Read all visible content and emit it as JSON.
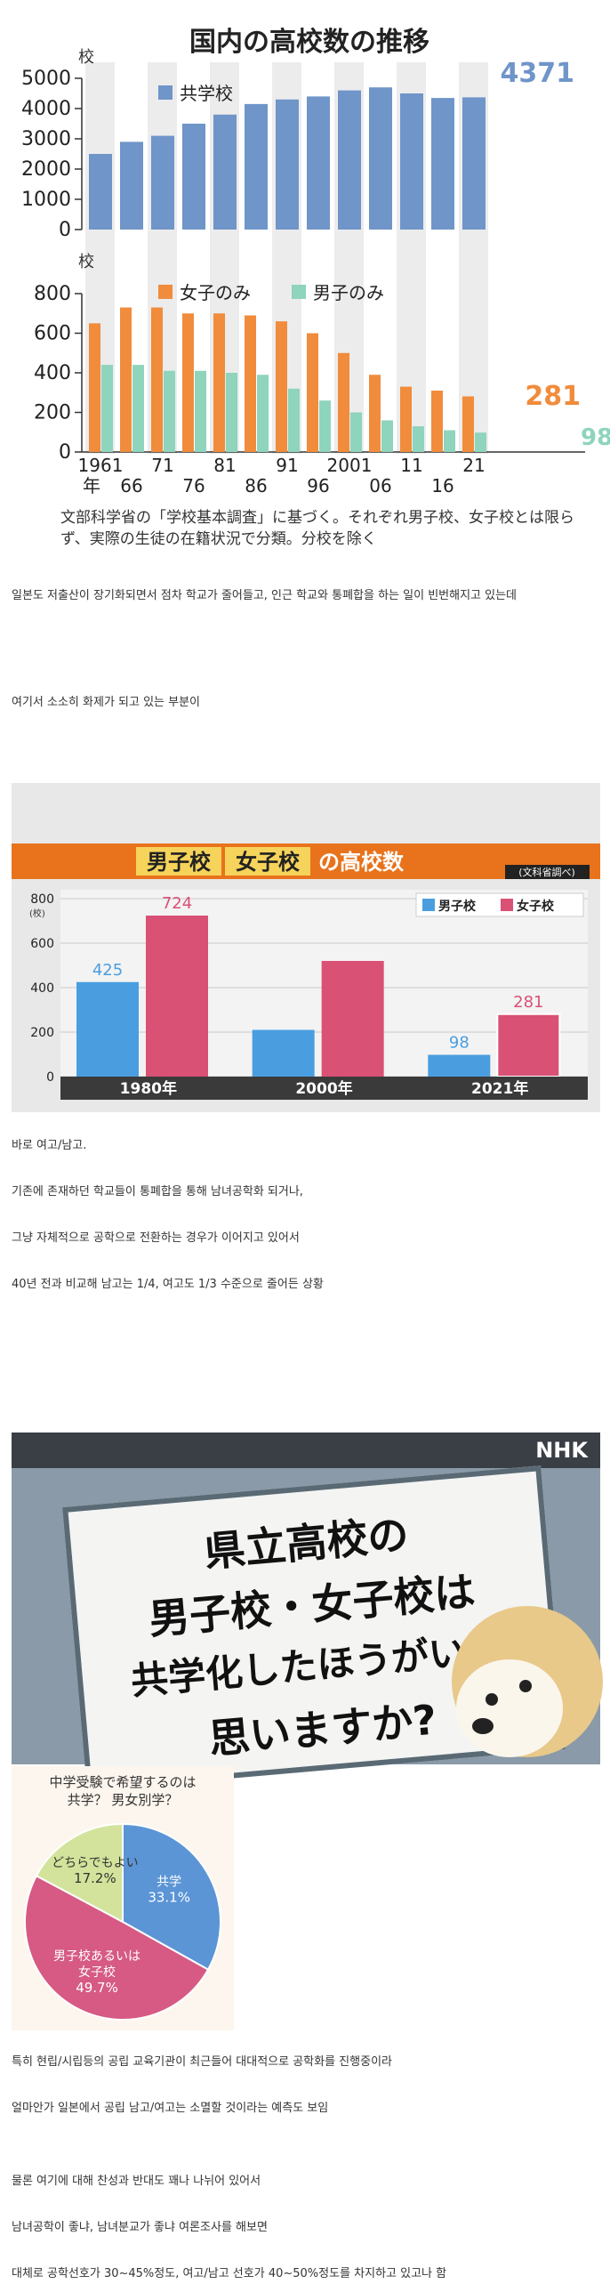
{
  "chart1": {
    "title": "国内の高校数の推移",
    "unit_top": "校",
    "unit_bottom": "校",
    "legend_coed": "共学校",
    "legend_girls": "女子のみ",
    "legend_boys": "男子のみ",
    "last_label_coed": "4371",
    "last_label_girls": "281",
    "last_label_boys": "98",
    "y_ticks_top": [
      "5000",
      "4000",
      "3000",
      "2000",
      "1000",
      "0"
    ],
    "y_ticks_bottom": [
      "800",
      "600",
      "400",
      "200",
      "0"
    ],
    "x_labels_top_row": [
      "1961",
      "71",
      "81",
      "91",
      "2001",
      "11",
      "21"
    ],
    "x_labels_bottom_row": [
      "年",
      "66",
      "76",
      "86",
      "96",
      "06",
      "16"
    ],
    "note": "文部科学省の「学校基本調査」に基づく。それぞれ男子校、女子校とは限らず、実際の生徒の在籍状況で分類。分校を除く",
    "colors": {
      "coed": "#6f95c9",
      "girls": "#f08c3c",
      "boys": "#8fd4bd",
      "band": "#ececec"
    }
  },
  "chart_data": [
    {
      "type": "bar",
      "title": "国内の高校数の推移",
      "categories": [
        "1961",
        "66",
        "71",
        "76",
        "81",
        "86",
        "91",
        "96",
        "2001",
        "06",
        "11",
        "16",
        "21"
      ],
      "series": [
        {
          "name": "共学校",
          "values": [
            2500,
            2900,
            3100,
            3500,
            3800,
            4150,
            4300,
            4400,
            4600,
            4700,
            4500,
            4350,
            4371
          ]
        },
        {
          "name": "女子のみ",
          "values": [
            650,
            730,
            730,
            700,
            700,
            690,
            660,
            600,
            500,
            390,
            330,
            310,
            281
          ]
        },
        {
          "name": "男子のみ",
          "values": [
            440,
            440,
            410,
            410,
            400,
            390,
            320,
            260,
            200,
            160,
            130,
            110,
            98
          ]
        }
      ],
      "ylim_top": [
        0,
        5000
      ],
      "ylim_bottom": [
        0,
        800
      ]
    },
    {
      "type": "bar",
      "title": "男子校 女子校 の高校数",
      "categories": [
        "1980年",
        "2000年",
        "2021年"
      ],
      "series": [
        {
          "name": "男子校",
          "values": [
            425,
            210,
            98
          ]
        },
        {
          "name": "女子校",
          "values": [
            724,
            520,
            281
          ]
        }
      ],
      "ylim": [
        0,
        800
      ]
    },
    {
      "type": "pie",
      "title": "中学受験で希望するのは共学？男女別学？",
      "categories": [
        "共学",
        "男子校あるいは女子校",
        "どちらでもよい"
      ],
      "values": [
        33.1,
        49.7,
        17.2
      ]
    }
  ],
  "chart2": {
    "title_boys": "男子校",
    "title_girls": "女子校",
    "title_rest": "の高校数",
    "source": "(文科省調べ)",
    "unit": "(校)",
    "legend_boys": "男子校",
    "legend_girls": "女子校",
    "y_ticks": [
      "800",
      "600",
      "400",
      "200",
      "0"
    ],
    "categories": [
      "1980年",
      "2000年",
      "2021年"
    ],
    "value_labels_boys": [
      "425",
      "",
      "98"
    ],
    "value_labels_girls": [
      "724",
      "",
      "281"
    ],
    "colors": {
      "boys": "#4a9ee0",
      "girls": "#d95175",
      "header": "#e8731c"
    }
  },
  "nhk": {
    "logo": "NHK",
    "sign_lines": [
      "県立高校の",
      "男子校・女子校は",
      "共学化したほうがいい",
      "思いますか?"
    ]
  },
  "pie": {
    "title_line1": "中学受験で希望するのは",
    "title_line2": "共学？ 男女別学？",
    "slices": [
      {
        "label": "共学",
        "value_label": "33.1%",
        "color": "#5b95d6"
      },
      {
        "label": "男子校あるいは\n女子校",
        "value_label": "49.7%",
        "color": "#d65a83"
      },
      {
        "label": "どちらでもよい",
        "value_label": "17.2%",
        "color": "#d3e39b"
      }
    ]
  },
  "paragraphs": [
    "일본도 저출산이 장기화되면서 점차 학교가 줄어들고, 인근 학교와 통폐합을 하는 일이 빈번해지고 있는데",
    "여기서 소소히 화제가 되고 있는 부분이",
    "바로 여고/남고.",
    "기존에 존재하던 학교들이 통폐합을 통해 남녀공학화 되거나,",
    "그냥 자체적으로 공학으로 전환하는 경우가 이어지고 있어서",
    "40년 전과 비교해 남고는 1/4, 여고도 1/3 수준으로 줄어든 상황",
    "특히 현립/시립등의 공립 교육기관이 최근들어 대대적으로 공학화를 진행중이라",
    "얼마안가 일본에서 공립 남고/여고는 소멸할 것이라는 예측도 보임",
    "물론 여기에 대해 찬성과 반대도 꽤나 나뉘어 있어서",
    "남녀공학이 좋냐, 남녀분교가 좋냐 여론조사를 해보면",
    "대체로 공학선호가 30~45%정도, 여고/남고 선호가 40~50%정도를 차지하고 있고나 함"
  ]
}
